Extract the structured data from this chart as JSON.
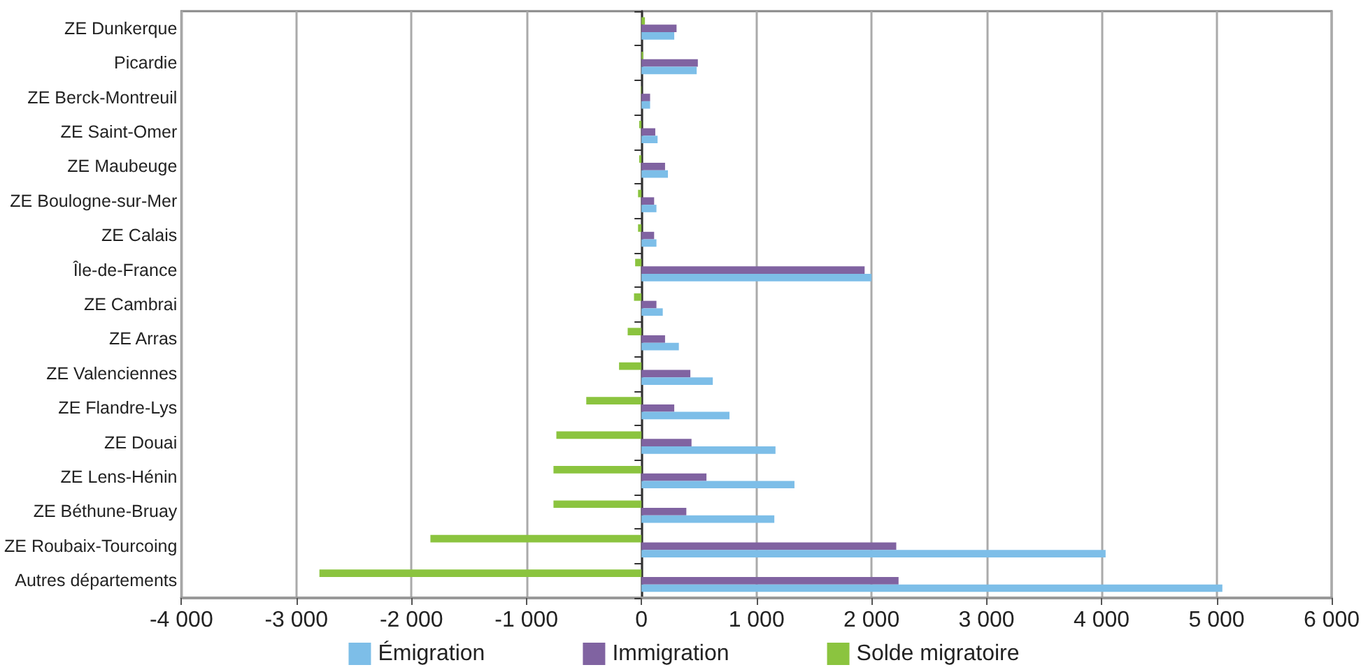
{
  "chart_data": {
    "type": "bar",
    "orientation": "horizontal",
    "categories": [
      "ZE Dunkerque",
      "Picardie",
      "ZE Berck-Montreuil",
      "ZE Saint-Omer",
      "ZE Maubeuge",
      "ZE Boulogne-sur-Mer",
      "ZE Calais",
      "Île-de-France",
      "ZE Cambrai",
      "ZE Arras",
      "ZE Valenciennes",
      "ZE Flandre-Lys",
      "ZE Douai",
      "ZE Lens-Hénin",
      "ZE Béthune-Bruay",
      "ZE Roubaix-Tourcoing",
      "Autres départements"
    ],
    "series": [
      {
        "name": "Émigration",
        "color": "#7dbee8",
        "values": [
          285,
          480,
          75,
          140,
          230,
          130,
          130,
          2000,
          185,
          325,
          620,
          765,
          1165,
          1330,
          1155,
          4035,
          5050
        ]
      },
      {
        "name": "Immigration",
        "color": "#8063a1",
        "values": [
          305,
          490,
          75,
          120,
          205,
          110,
          110,
          1940,
          130,
          205,
          425,
          285,
          435,
          565,
          390,
          2215,
          2235
        ]
      },
      {
        "name": "Solde migratoire",
        "color": "#8bc43f",
        "values": [
          30,
          15,
          -5,
          -20,
          -20,
          -30,
          -30,
          -55,
          -65,
          -120,
          -195,
          -480,
          -740,
          -765,
          -765,
          -1835,
          -2800
        ]
      }
    ],
    "xlim": [
      -4000,
      6000
    ],
    "xticks": [
      {
        "value": -4000,
        "label": "-4 000"
      },
      {
        "value": -3000,
        "label": "-3 000"
      },
      {
        "value": -2000,
        "label": "-2 000"
      },
      {
        "value": -1000,
        "label": "-1 000"
      },
      0,
      {
        "value": 1000,
        "label": "1 000"
      },
      {
        "value": 2000,
        "label": "2 000"
      },
      {
        "value": 3000,
        "label": "3 000"
      },
      {
        "value": 4000,
        "label": "4 000"
      },
      {
        "value": 5000,
        "label": "5 000"
      },
      {
        "value": 6000,
        "label": "6 000"
      }
    ],
    "grid": "x",
    "legend": "bottom"
  }
}
